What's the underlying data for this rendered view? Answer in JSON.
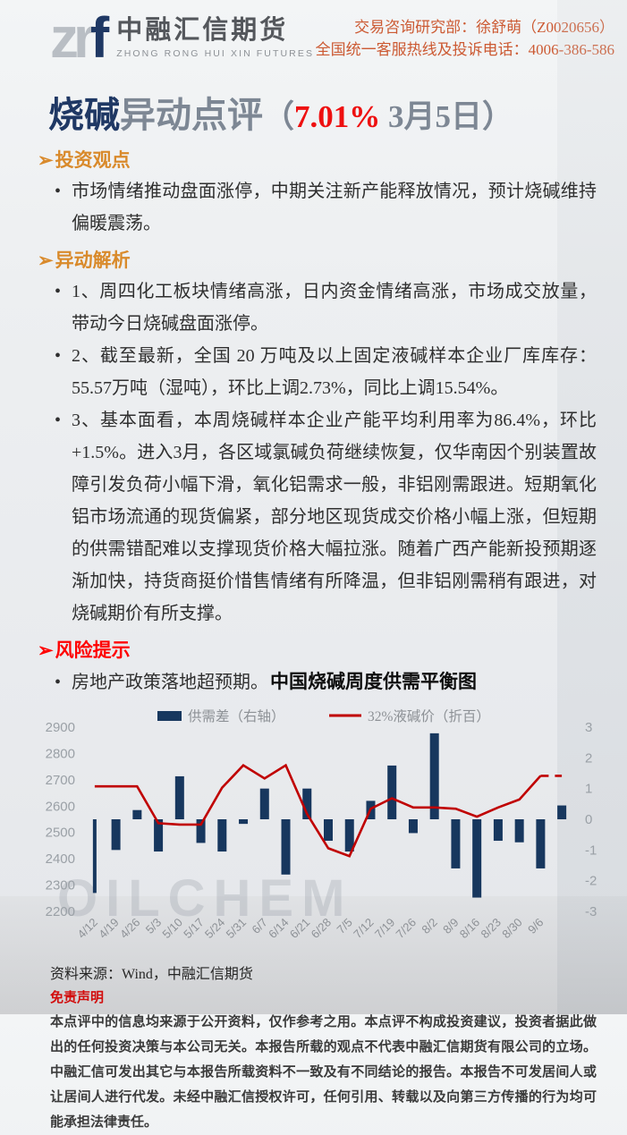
{
  "header": {
    "logo_prefix": "zr",
    "logo_accent": "f",
    "logo_cn": "中融汇信期货",
    "logo_en": "ZHONG RONG HUI XIN FUTURES",
    "contact_line1": "交易咨询研究部：徐舒萌（Z0020656）",
    "contact_line2": "全国统一客服热线及投诉电话：4006-386-586"
  },
  "title": {
    "product": "烧碱",
    "suffix": "异动点评",
    "paren_open": "（",
    "change": "7.01%",
    "date": " 3月5日",
    "paren_close": "）"
  },
  "sections": [
    {
      "marker": "➢",
      "heading": "投资观点",
      "bullets": [
        "市场情绪推动盘面涨停，中期关注新产能释放情况，预计烧碱维持偏暖震荡。"
      ]
    },
    {
      "marker": "➢",
      "heading": "异动解析",
      "bullets": [
        "1、周四化工板块情绪高涨，日内资金情绪高涨，市场成交放量，带动今日烧碱盘面涨停。",
        "2、截至最新，全国 20 万吨及以上固定液碱样本企业厂库库存：55.57万吨（湿吨），环比上调2.73%，同比上调15.54%。",
        "3、基本面看，本周烧碱样本企业产能平均利用率为86.4%，环比+1.5%。进入3月，各区域氯碱负荷继续恢复，仅华南因个别装置故障引发负荷小幅下滑，氧化铝需求一般，非铝刚需跟进。短期氧化铝市场流通的现货偏紧，部分地区现货成交价格小幅上涨，但短期的供需错配难以支撑现货价格大幅拉涨。随着广西产能新投预期逐渐加快，持货商挺价惜售情绪有所降温，但非铝刚需稍有跟进，对烧碱期价有所支撑。"
      ]
    },
    {
      "marker": "➢",
      "heading": "风险提示",
      "bullets": [
        "房地产政策落地超预期。"
      ]
    }
  ],
  "chart_data": {
    "type": "bar+line",
    "title": "中国烧碱周度供需平衡图",
    "categories": [
      "4/12",
      "4/19",
      "4/26",
      "5/3",
      "5/10",
      "5/17",
      "5/24",
      "5/31",
      "6/7",
      "6/14",
      "6/21",
      "6/28",
      "7/5",
      "7/12",
      "7/19",
      "7/26",
      "8/2",
      "8/9",
      "8/16",
      "8/23",
      "8/30",
      "9/6",
      ""
    ],
    "series": [
      {
        "name": "供需差（右轴）",
        "type": "bar",
        "axis": "right",
        "color": "#17375E",
        "values": [
          -2.4,
          -1.0,
          0.3,
          -1.05,
          1.4,
          -0.77,
          -1.05,
          -0.15,
          1.0,
          -1.8,
          1.0,
          -0.7,
          -1.05,
          0.6,
          1.75,
          -0.45,
          2.8,
          -1.6,
          -2.55,
          -0.7,
          -0.75,
          -1.6,
          0.45
        ]
      },
      {
        "name": "32%液碱价（折百）",
        "type": "line",
        "axis": "left",
        "color": "#C00000",
        "last_segment_dashed": true,
        "values": [
          2675,
          2675,
          2675,
          2535,
          2530,
          2530,
          2670,
          2755,
          2705,
          2755,
          2570,
          2440,
          2410,
          2590,
          2630,
          2595,
          2595,
          2590,
          2560,
          2595,
          2625,
          2715,
          2715
        ]
      }
    ],
    "left_axis": {
      "min": 2200,
      "max": 2900,
      "step": 100
    },
    "right_axis": {
      "min": -3,
      "max": 3,
      "step": 1
    },
    "legend_position": "top",
    "grid": false,
    "watermark": "OILCHEM"
  },
  "footer": {
    "source": "资料来源：Wind，中融汇信期货",
    "disclaimer_title": "免责声明",
    "disclaimer_text": "本点评中的信息均来源于公开资料，仅作参考之用。本点评不构成投资建议，投资者据此做出的任何投资决策与本公司无关。本报告所载的观点不代表中融汇信期货有限公司的立场。中融汇信可发出其它与本报告所载资料不一致及有不同结论的报告。本报告不可发居间人或让居间人进行代发。未经中融汇信授权许可，任何引用、转载以及向第三方传播的行为均可能承担法律责任。"
  },
  "colors": {
    "accent_navy": "#1F3864",
    "title_gray": "#7D8794",
    "section_heading_orange": "#D98A2B",
    "risk_heading_red": "#FF0000",
    "contact_orange": "#CC5A33",
    "bar_navy": "#17375E",
    "line_red": "#C00000",
    "disclaimer_red": "#E60000"
  }
}
